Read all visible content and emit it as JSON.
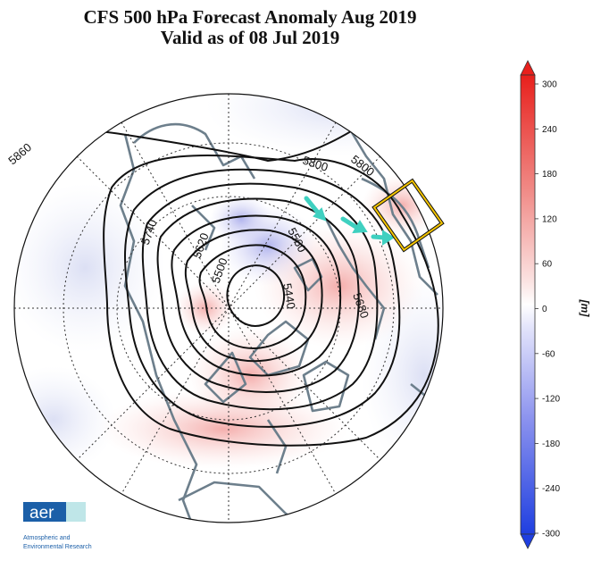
{
  "title": "CFS 500 hPa Forecast Anomaly Aug 2019",
  "subtitle": "Valid as of 08 Jul 2019",
  "contour_labels": [
    "5860",
    "5800",
    "5800",
    "5740",
    "5620",
    "5500",
    "5560",
    "5440",
    "5680"
  ],
  "colorbar": {
    "unit": "[m]",
    "ticks": [
      "300",
      "240",
      "180",
      "120",
      "60",
      "0",
      "-60",
      "-120",
      "-180",
      "-240",
      "-300"
    ],
    "tick_values": [
      300,
      240,
      180,
      120,
      60,
      0,
      -60,
      -120,
      -180,
      -240,
      -300
    ],
    "min": -300,
    "max": 300,
    "positive_color": "#e8201c",
    "negative_color": "#1f3fe0"
  },
  "logo": {
    "text": "aer",
    "line1": "Atmospheric and",
    "line2": "Environmental Research",
    "color": "#1b5fa8",
    "accent": "#bfe6e8"
  },
  "annotation_color": "#f2c300",
  "arrow_color": "#3fd0c0"
}
